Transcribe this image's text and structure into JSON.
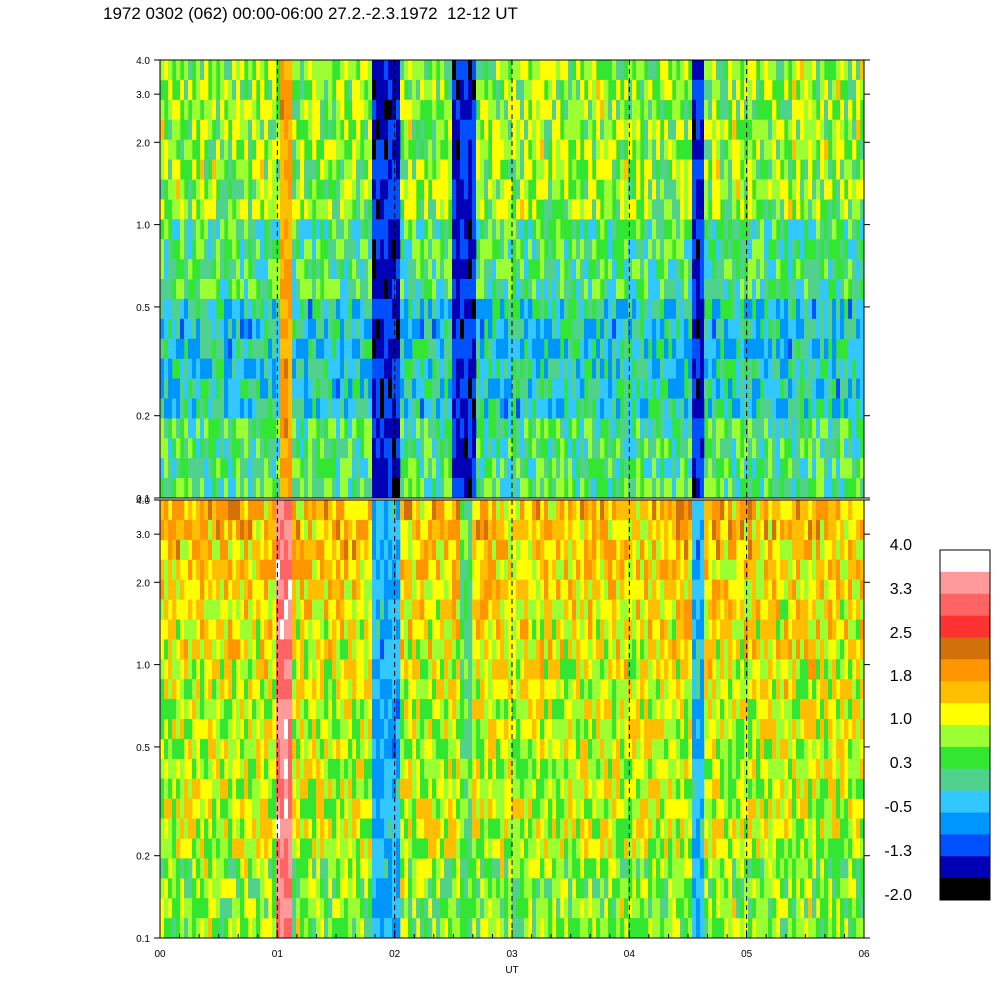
{
  "title": "1972 0302 (062) 00:00-06:00 27.2.-2.3.1972  12-12 UT",
  "chart_data": {
    "type": "heatmap",
    "title": "1972 0302 (062) 00:00-06:00 27.2.-2.3.1972  12-12 UT",
    "xlabel": "UT",
    "x_ticks": [
      "00",
      "01",
      "02",
      "03",
      "04",
      "05",
      "06"
    ],
    "xlim": [
      0,
      6
    ],
    "panels": [
      {
        "name": "upper",
        "ylim": [
          0.1,
          4.0
        ],
        "yscale": "log",
        "y_ticks": [
          "0.1",
          "0.2",
          "0.5",
          "1.0",
          "2.0",
          "3.0",
          "4.0"
        ],
        "y_tick_values": [
          0.1,
          0.2,
          0.5,
          1.0,
          2.0,
          3.0,
          4.0
        ],
        "dominant_level": 0.3,
        "features": [
          {
            "x_start": 1.02,
            "x_end": 1.12,
            "level": 1.8
          },
          {
            "x_start": 1.8,
            "x_end": 2.05,
            "level": -1.3
          },
          {
            "x_start": 2.5,
            "x_end": 2.7,
            "level": -1.3
          },
          {
            "x_start": 4.55,
            "x_end": 4.65,
            "level": -1.3
          }
        ]
      },
      {
        "name": "lower",
        "ylim": [
          0.1,
          4.0
        ],
        "yscale": "log",
        "y_ticks": [
          "0.1",
          "0.2",
          "0.5",
          "1.0",
          "2.0",
          "3.0",
          "4.0"
        ],
        "y_tick_values": [
          0.1,
          0.2,
          0.5,
          1.0,
          2.0,
          3.0,
          4.0
        ],
        "dominant_level": 1.0,
        "features": [
          {
            "x_start": 1.0,
            "x_end": 1.12,
            "level": 3.3
          },
          {
            "x_start": 1.8,
            "x_end": 2.05,
            "level": -0.5
          },
          {
            "x_start": 2.55,
            "x_end": 2.65,
            "level": 0.3
          },
          {
            "x_start": 4.55,
            "x_end": 4.65,
            "level": -0.5
          }
        ]
      }
    ],
    "colorbar": {
      "labels": [
        "4.0",
        "3.3",
        "2.5",
        "1.8",
        "1.0",
        "0.3",
        "-0.5",
        "-1.3",
        "-2.0"
      ],
      "colors": [
        "#ffffff",
        "#ff9a9a",
        "#ff6464",
        "#ff3232",
        "#d2700a",
        "#ff9600",
        "#ffbe00",
        "#ffff00",
        "#9bff32",
        "#32e632",
        "#50d28c",
        "#32c8ff",
        "#0096ff",
        "#0050ff",
        "#0000b4",
        "#000000"
      ]
    },
    "grid": "vertical dashed lines at hour ticks"
  }
}
